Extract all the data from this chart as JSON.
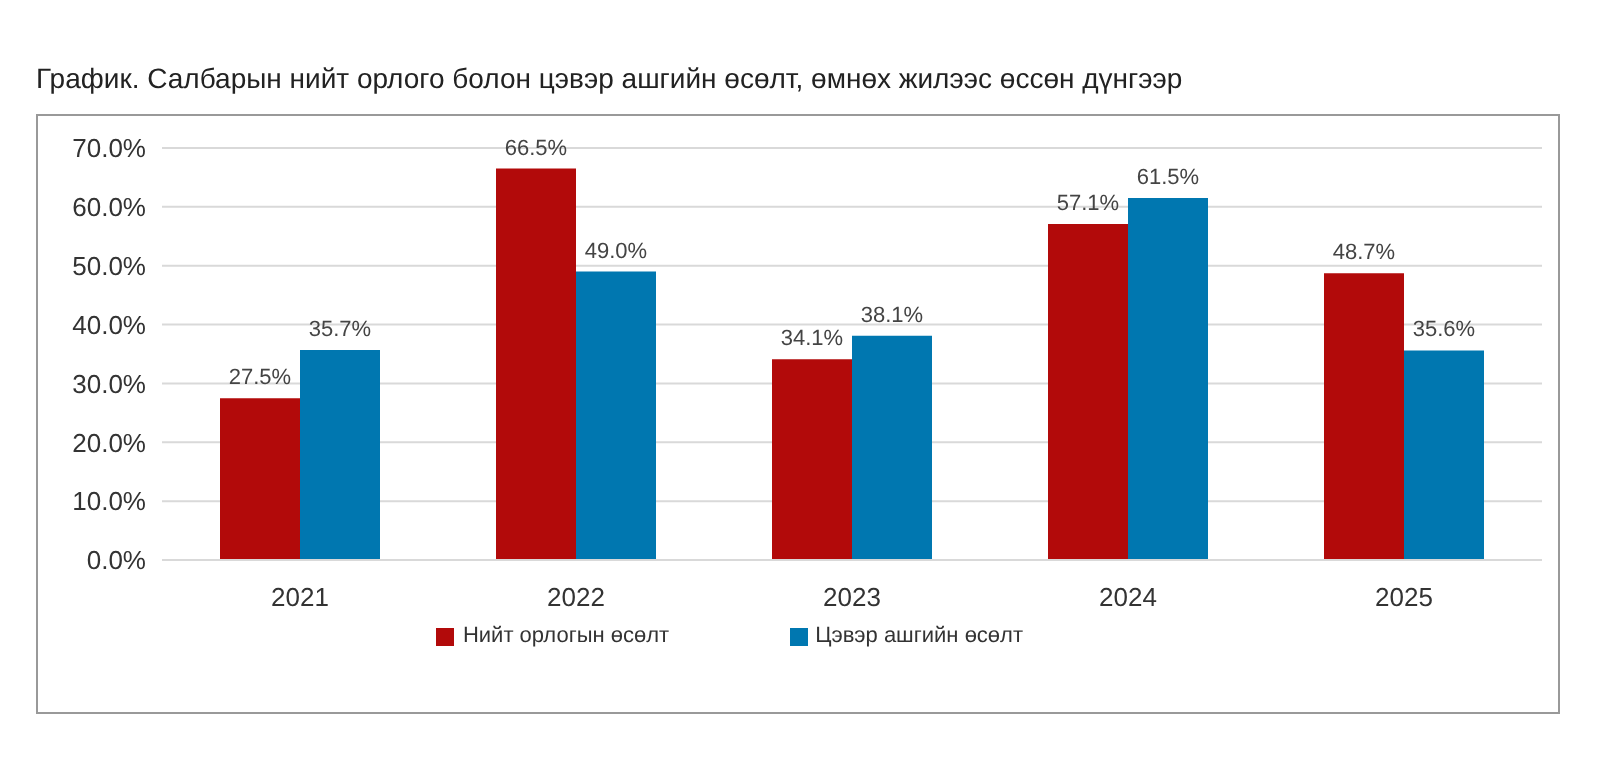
{
  "chart_data": {
    "type": "bar",
    "title": "График. Салбарын нийт орлого болон цэвэр ашгийн өсөлт, өмнөх жилээс өссөн дүнгээр",
    "categories": [
      "2021",
      "2022",
      "2023",
      "2024",
      "2025"
    ],
    "series": [
      {
        "name": "Нийт орлогын өсөлт",
        "color": "#b20a0a",
        "values": [
          27.5,
          66.5,
          34.1,
          57.1,
          48.7
        ],
        "value_labels": [
          "27.5%",
          "66.5%",
          "34.1%",
          "57.1%",
          "48.7%"
        ]
      },
      {
        "name": "Цэвэр ашгийн өсөлт",
        "color": "#0077b0",
        "values": [
          35.7,
          49.0,
          38.1,
          61.5,
          35.6
        ],
        "value_labels": [
          "35.7%",
          "49.0%",
          "38.1%",
          "61.5%",
          "35.6%"
        ]
      }
    ],
    "ylim": [
      0,
      70
    ],
    "yticks": [
      {
        "value": 0,
        "label": "0.0%"
      },
      {
        "value": 10,
        "label": "10.0%"
      },
      {
        "value": 20,
        "label": "20.0%"
      },
      {
        "value": 30,
        "label": "30.0%"
      },
      {
        "value": 40,
        "label": "40.0%"
      },
      {
        "value": 50,
        "label": "50.0%"
      },
      {
        "value": 60,
        "label": "60.0%"
      },
      {
        "value": 70,
        "label": "70.0%"
      }
    ],
    "grid": "y",
    "legend": "bottom"
  }
}
